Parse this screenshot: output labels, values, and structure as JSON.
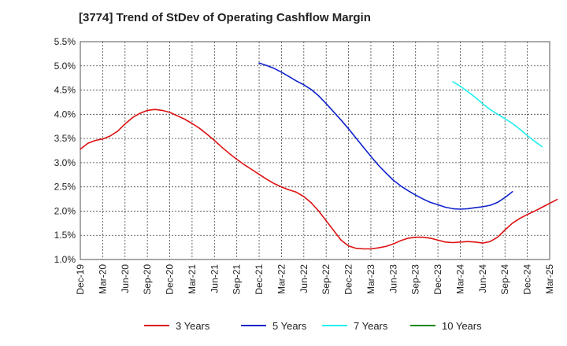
{
  "chart_data": {
    "type": "line",
    "title": "[3774]  Trend of StDev of Operating Cashflow Margin",
    "xlabel": "",
    "ylabel": "",
    "ylim": [
      1.0,
      5.5
    ],
    "y_ticks": [
      "1.0%",
      "1.5%",
      "2.0%",
      "2.5%",
      "3.0%",
      "3.5%",
      "4.0%",
      "4.5%",
      "5.0%",
      "5.5%"
    ],
    "x_ticks": [
      "Dec-19",
      "Mar-20",
      "Jun-20",
      "Sep-20",
      "Dec-20",
      "Mar-21",
      "Jun-21",
      "Sep-21",
      "Dec-21",
      "Mar-22",
      "Jun-22",
      "Sep-22",
      "Dec-22",
      "Mar-23",
      "Jun-23",
      "Sep-23",
      "Dec-23",
      "Mar-24",
      "Jun-24",
      "Sep-24",
      "Dec-24",
      "Mar-25"
    ],
    "grid": true,
    "legend_position": "bottom",
    "series": [
      {
        "name": "3 Years",
        "color": "#dd1111",
        "start_index": 0,
        "values": [
          3.28,
          3.4,
          3.46,
          3.49,
          3.55,
          3.65,
          3.8,
          3.93,
          4.02,
          4.08,
          4.1,
          4.08,
          4.04,
          3.97,
          3.9,
          3.81,
          3.71,
          3.59,
          3.46,
          3.32,
          3.19,
          3.07,
          2.96,
          2.86,
          2.76,
          2.66,
          2.57,
          2.5,
          2.44,
          2.39,
          2.3,
          2.17,
          2.0,
          1.8,
          1.6,
          1.4,
          1.28,
          1.23,
          1.22,
          1.22,
          1.24,
          1.27,
          1.32,
          1.39,
          1.44,
          1.46,
          1.46,
          1.44,
          1.4,
          1.36,
          1.35,
          1.36,
          1.37,
          1.36,
          1.34,
          1.37,
          1.46,
          1.61,
          1.75,
          1.85,
          1.93,
          2.0,
          2.08,
          2.16,
          2.24
        ]
      },
      {
        "name": "5 Years",
        "color": "#1122cc",
        "start_index": 24,
        "values": [
          5.06,
          5.01,
          4.95,
          4.87,
          4.78,
          4.69,
          4.61,
          4.51,
          4.38,
          4.22,
          4.05,
          3.88,
          3.7,
          3.51,
          3.32,
          3.13,
          2.95,
          2.79,
          2.64,
          2.52,
          2.42,
          2.33,
          2.25,
          2.18,
          2.13,
          2.08,
          2.05,
          2.04,
          2.05,
          2.07,
          2.09,
          2.12,
          2.18,
          2.28,
          2.4
        ]
      },
      {
        "name": "7 Years",
        "color": "#22eeee",
        "start_index": 50,
        "values": [
          4.67,
          4.58,
          4.47,
          4.35,
          4.22,
          4.1,
          4.0,
          3.91,
          3.81,
          3.69,
          3.56,
          3.44,
          3.33
        ]
      },
      {
        "name": "10 Years",
        "color": "#118811",
        "start_index": 0,
        "values": []
      }
    ]
  }
}
